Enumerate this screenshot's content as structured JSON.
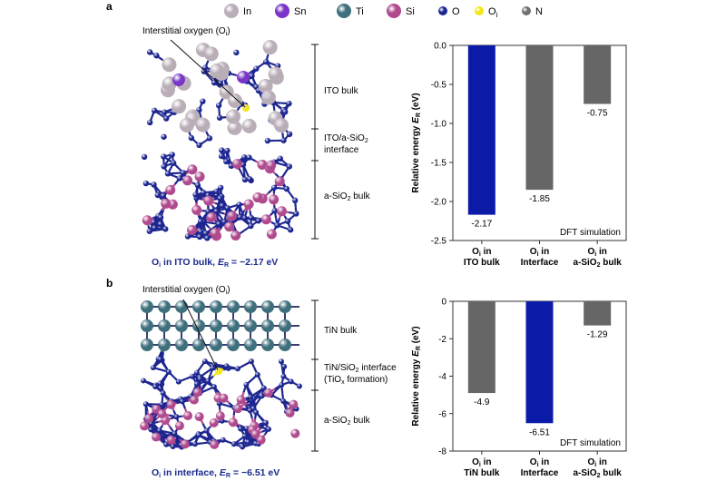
{
  "legend": {
    "items": [
      {
        "label": "In",
        "color": "#b9aeb8"
      },
      {
        "label": "Sn",
        "color": "#7a35c8"
      },
      {
        "label": "Ti",
        "color": "#3e6f7c"
      },
      {
        "label": "Si",
        "color": "#b04a8e"
      },
      {
        "label": "O",
        "color": "#1c2590"
      },
      {
        "label": "O",
        "sub": "i",
        "color": "#f2e614"
      },
      {
        "label": "N",
        "color": "#707070"
      }
    ]
  },
  "panel_a": {
    "label": "a",
    "structure": {
      "pointer": "Interstitial oxygen (O",
      "pointer_sub": "i",
      "pointer_end": ")",
      "region1": "ITO bulk",
      "region2_line1": "ITO/a-SiO",
      "region2_sub": "2",
      "region2_line2": "interface",
      "region3": "a-SiO",
      "region3_sub": "2",
      "region3_end": " bulk",
      "caption_a": "O",
      "caption_sub": "i",
      "caption_b": " in ITO bulk, ",
      "caption_c": "E",
      "caption_sub2": "R",
      "caption_d": " = −2.17 eV"
    }
  },
  "panel_b": {
    "label": "b",
    "structure": {
      "pointer": "Interstitial oxygen (O",
      "pointer_sub": "i",
      "pointer_end": ")",
      "region1": "TiN bulk",
      "region2_line1": "TiN/SiO",
      "region2_sub": "2",
      "region2_line1_end": " interface",
      "region2_line2": "(TiO",
      "region2_line2_sub": "x",
      "region2_line2_end": " formation)",
      "region3": "a-SiO",
      "region3_sub": "2",
      "region3_end": " bulk",
      "caption_a": "O",
      "caption_sub": "i",
      "caption_b": " in interface, ",
      "caption_c": "E",
      "caption_sub2": "R",
      "caption_d": " = −6.51 eV"
    }
  },
  "chart_data": [
    {
      "type": "bar",
      "ylabel": "Relative energy E",
      "ylabel_sub": "R",
      "ylabel_unit": " (eV)",
      "ylim": [
        -2.5,
        0.0
      ],
      "yticks": [
        0.0,
        -0.5,
        -1.0,
        -1.5,
        -2.0,
        -2.5
      ],
      "ytick_labels": [
        "0.0",
        "-0.5",
        "-1.0",
        "-1.5",
        "-2.0",
        "-2.5"
      ],
      "categories": [
        {
          "line1": "O",
          "sub": "i",
          "line1_end": " in",
          "line2": "ITO bulk",
          "line2_sub": ""
        },
        {
          "line1": "O",
          "sub": "i",
          "line1_end": " in",
          "line2": "Interface",
          "line2_sub": ""
        },
        {
          "line1": "O",
          "sub": "i",
          "line1_end": " in",
          "line2": "a-SiO",
          "line2_sub": "2",
          "line2_end": " bulk"
        }
      ],
      "values": [
        -2.17,
        -1.85,
        -0.75
      ],
      "value_labels": [
        "-2.17",
        "-1.85",
        "-0.75"
      ],
      "bar_colors": [
        "#0b1ba8",
        "#666666",
        "#666666"
      ],
      "annotation": "DFT simulation",
      "grid": false
    },
    {
      "type": "bar",
      "ylabel": "Relative energy E",
      "ylabel_sub": "R",
      "ylabel_unit": " (eV)",
      "ylim": [
        -8,
        0
      ],
      "yticks": [
        0,
        -2,
        -4,
        -6,
        -8
      ],
      "ytick_labels": [
        "0",
        "-2",
        "-4",
        "-6",
        "-8"
      ],
      "categories": [
        {
          "line1": "O",
          "sub": "i",
          "line1_end": " in",
          "line2": "TiN bulk",
          "line2_sub": ""
        },
        {
          "line1": "O",
          "sub": "i",
          "line1_end": " in",
          "line2": "Interface",
          "line2_sub": ""
        },
        {
          "line1": "O",
          "sub": "i",
          "line1_end": " in",
          "line2": "a-SiO",
          "line2_sub": "2",
          "line2_end": " bulk"
        }
      ],
      "values": [
        -4.9,
        -6.51,
        -1.29
      ],
      "value_labels": [
        "-4.9",
        "-6.51",
        "-1.29"
      ],
      "bar_colors": [
        "#666666",
        "#0b1ba8",
        "#666666"
      ],
      "annotation": "DFT simulation",
      "grid": false
    }
  ]
}
